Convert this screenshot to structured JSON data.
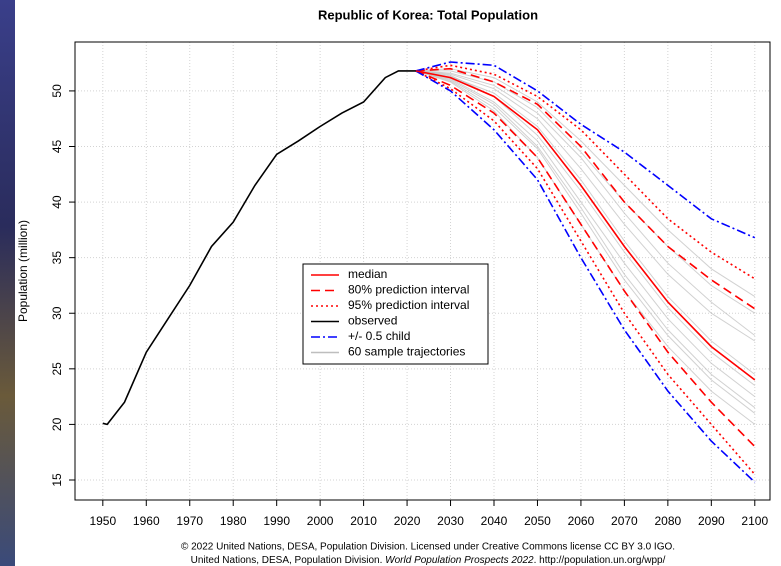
{
  "chart_data": {
    "type": "line",
    "title": "Republic of Korea: Total Population",
    "y_label": "Population (million)",
    "x": [
      2022,
      2030,
      2040,
      2050,
      2060,
      2070,
      2080,
      2090,
      2100
    ],
    "xlim": [
      1943.6,
      2103.5
    ],
    "xticks": [
      1950,
      1960,
      1970,
      1980,
      1990,
      2000,
      2010,
      2020,
      2030,
      2040,
      2050,
      2060,
      2070,
      2080,
      2090,
      2100
    ],
    "ylim": [
      13.2,
      54.4
    ],
    "yticks": [
      15,
      20,
      25,
      30,
      35,
      40,
      45,
      50
    ],
    "grid": true,
    "legend": "center",
    "series": [
      {
        "name": "median",
        "color": "#ff0000",
        "dash": "solid",
        "values": [
          51.8,
          51.2,
          49.5,
          46.5,
          41.5,
          36,
          31,
          27,
          24
        ]
      },
      {
        "name": "80% prediction interval",
        "color": "#ff0000",
        "dash": "dashed",
        "upper": [
          51.8,
          52,
          50.8,
          48.8,
          45,
          40,
          36,
          33,
          30.4
        ],
        "lower": [
          51.8,
          50.5,
          48,
          44,
          38,
          32,
          26.5,
          22,
          18
        ]
      },
      {
        "name": "95% prediction interval",
        "color": "#ff0000",
        "dash": "dotted",
        "upper": [
          51.8,
          52.3,
          51.5,
          49.5,
          46.5,
          42.5,
          38.5,
          35.5,
          33.1
        ],
        "lower": [
          51.8,
          50.2,
          47.3,
          43,
          36.5,
          30,
          24.5,
          20,
          15.5
        ]
      },
      {
        "name": "observed",
        "color": "#000000",
        "dash": "solid",
        "x": [
          1950,
          1951,
          1955,
          1960,
          1965,
          1970,
          1975,
          1980,
          1985,
          1990,
          1995,
          2000,
          2005,
          2010,
          2015,
          2018,
          2020,
          2022
        ],
        "values": [
          20.1,
          20.0,
          22,
          26.5,
          29.5,
          32.5,
          36,
          38.2,
          41.5,
          44.3,
          45.5,
          46.8,
          48,
          49,
          51.2,
          51.8,
          51.8,
          51.8
        ]
      },
      {
        "name": "+/- 0.5 child",
        "color": "#0000ff",
        "dash": "dotdash",
        "upper": [
          51.8,
          52.6,
          52.3,
          50,
          47,
          44.5,
          41.5,
          38.5,
          36.8
        ],
        "lower": [
          51.8,
          50,
          46.5,
          42,
          35,
          28.5,
          23,
          18.5,
          14.8
        ]
      },
      {
        "name": "60 sample trajectories",
        "color": "#bebebe",
        "dash": "solid",
        "lines": [
          [
            51.8,
            51.5,
            50.2,
            47.5,
            43,
            38,
            33.5,
            30,
            27.5
          ],
          [
            51.8,
            51.0,
            48.8,
            45,
            39.5,
            33.5,
            28.5,
            24.5,
            21.5
          ],
          [
            51.8,
            51.8,
            50.8,
            48.5,
            44.5,
            40,
            36,
            32.5,
            30
          ],
          [
            51.8,
            50.8,
            48.2,
            44,
            38,
            32,
            27,
            23,
            20
          ],
          [
            51.8,
            51.3,
            49.8,
            46.8,
            42,
            36.5,
            31.5,
            27.5,
            24.5
          ],
          [
            51.8,
            51.6,
            50.5,
            48,
            44,
            39,
            34.5,
            31,
            28
          ],
          [
            51.8,
            51.1,
            49,
            45.5,
            40,
            34.5,
            29.5,
            25.5,
            22.5
          ],
          [
            51.8,
            52,
            51.2,
            49,
            45.5,
            41.5,
            37.5,
            34,
            31.5
          ],
          [
            51.8,
            50.9,
            48.5,
            44.8,
            39,
            33,
            28,
            24,
            21
          ],
          [
            51.8,
            51.4,
            49.5,
            46,
            41,
            35.5,
            30.5,
            26.5,
            23.5
          ]
        ]
      }
    ],
    "footer": {
      "line1": "© 2022 United Nations, DESA, Population Division. Licensed under Creative Commons license CC BY 3.0 IGO.",
      "line2_start": "United Nations, DESA, Population Division. ",
      "line2_italic": "World Population Prospects 2022",
      "line2_end": ". http://population.un.org/wpp/"
    }
  }
}
